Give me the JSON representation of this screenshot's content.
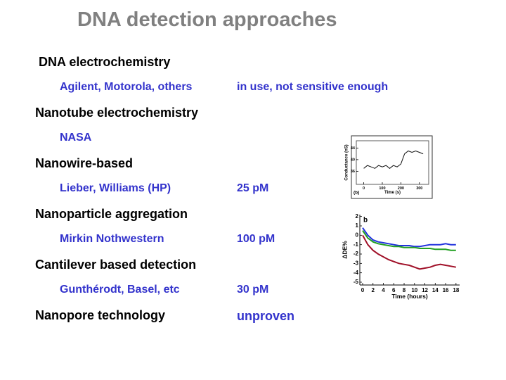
{
  "slide": {
    "title": "DNA detection approaches",
    "items": [
      {
        "heading": "DNA electrochemistry",
        "source": "Agilent, Motorola, others",
        "note": "in use, not sensitive enough"
      },
      {
        "heading": "Nanotube electrochemistry",
        "source": "NASA"
      },
      {
        "heading": "Nanowire-based",
        "source": "Lieber, Williams (HP)",
        "note": "25 pM"
      },
      {
        "heading": "Nanoparticle aggregation",
        "source": "Mirkin Nothwestern",
        "note": "100 pM"
      },
      {
        "heading": "Cantilever based detection",
        "source": "Gunthérodt, Basel, etc",
        "note": "30 pM"
      },
      {
        "heading": "Nanopore technology",
        "note": "unproven"
      }
    ]
  },
  "chart_data": [
    {
      "type": "line",
      "annotation": "(b)",
      "x_label": "Time (s)",
      "y_label": "Conductance (nS)",
      "frame": true,
      "x": [
        0,
        20,
        40,
        60,
        80,
        100,
        120,
        140,
        160,
        180,
        200,
        220,
        240,
        260,
        280,
        300,
        320
      ],
      "series": [
        {
          "color": "#111111",
          "values": [
            37,
            38,
            37.5,
            37,
            38,
            37.5,
            38,
            37,
            38,
            37.5,
            38.5,
            42,
            43,
            42.5,
            43,
            42.5,
            42
          ]
        }
      ],
      "xlim": [
        -40,
        350
      ],
      "ylim": [
        31.5,
        46.5
      ],
      "xticks": [
        0,
        100,
        200,
        300
      ],
      "yticks": [
        36,
        40,
        44
      ]
    },
    {
      "type": "line",
      "annotation": "b",
      "x_label": "Time (hours)",
      "y_label": "ΔDE%",
      "frame": false,
      "x": [
        0,
        1,
        2,
        3,
        4,
        5,
        6,
        7,
        8,
        9,
        10,
        11,
        12,
        13,
        14,
        15,
        16,
        17,
        18
      ],
      "series": [
        {
          "color": "#2233dd",
          "values": [
            0.8,
            0,
            -0.5,
            -0.7,
            -0.8,
            -0.9,
            -1,
            -1.1,
            -1.1,
            -1.1,
            -1.2,
            -1.2,
            -1.1,
            -1,
            -1,
            -1,
            -0.9,
            -1,
            -1
          ]
        },
        {
          "color": "#22a022",
          "values": [
            0.5,
            -0.3,
            -0.7,
            -0.9,
            -1,
            -1.1,
            -1.2,
            -1.2,
            -1.3,
            -1.3,
            -1.3,
            -1.4,
            -1.4,
            -1.4,
            -1.5,
            -1.5,
            -1.5,
            -1.6,
            -1.6
          ]
        },
        {
          "color": "#a01028",
          "values": [
            0,
            -1,
            -1.6,
            -2,
            -2.3,
            -2.6,
            -2.8,
            -3,
            -3.1,
            -3.2,
            -3.4,
            -3.6,
            -3.5,
            -3.4,
            -3.2,
            -3.1,
            -3.2,
            -3.3,
            -3.4
          ]
        }
      ],
      "xlim": [
        -0.54,
        18.7
      ],
      "ylim": [
        -5.3,
        2.2
      ],
      "xticks": [
        0,
        2,
        4,
        6,
        8,
        10,
        12,
        14,
        16,
        18
      ],
      "yticks": [
        2,
        1,
        0,
        -1,
        -2,
        -3,
        -4,
        -5
      ]
    }
  ]
}
